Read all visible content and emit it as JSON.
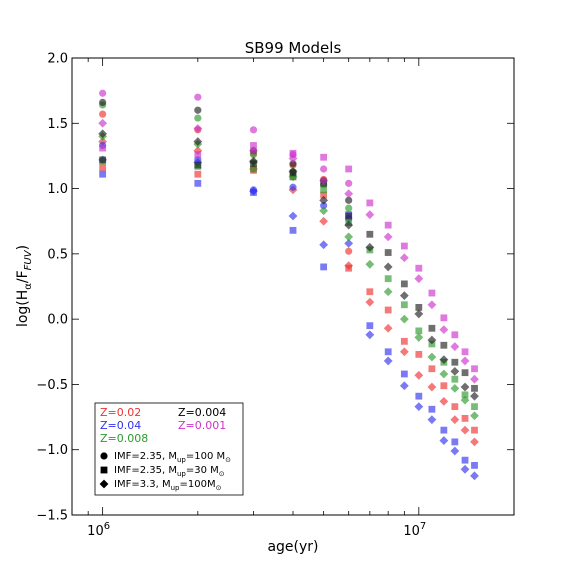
{
  "chart_data": {
    "type": "scatter",
    "title": "SB99 Models",
    "xlabel": "age(yr)",
    "ylabel": "log(Hα/F_FUV)",
    "x_scale": "log",
    "xlim": [
      800000,
      20000000
    ],
    "ylim": [
      -1.5,
      2.0
    ],
    "x_ticks": [
      {
        "value": 1000000,
        "base": "10",
        "exp": "6"
      },
      {
        "value": 10000000,
        "base": "10",
        "exp": "7"
      }
    ],
    "y_ticks": [
      {
        "value": 2.0,
        "label": "2.0"
      },
      {
        "value": 1.5,
        "label": "1.5"
      },
      {
        "value": 1.0,
        "label": "1.0"
      },
      {
        "value": 0.5,
        "label": "0.5"
      },
      {
        "value": 0.0,
        "label": "0.0"
      },
      {
        "value": -0.5,
        "label": "−0.5"
      },
      {
        "value": -1.0,
        "label": "−1.0"
      },
      {
        "value": -1.5,
        "label": "−1.5"
      }
    ],
    "grid": false,
    "legend_position": "bottom-left",
    "colors": {
      "Z=0.02": "#ee3333",
      "Z=0.04": "#3333ee",
      "Z=0.008": "#2e9a2e",
      "Z=0.004": "#222222",
      "Z=0.001": "#cc33cc"
    },
    "legend": {
      "metallicities": [
        {
          "label": "Z=0.02",
          "color": "#ee3333"
        },
        {
          "label": "Z=0.004",
          "color": "#000000"
        },
        {
          "label": "Z=0.04",
          "color": "#3333ee"
        },
        {
          "label": "Z=0.001",
          "color": "#cc33cc"
        },
        {
          "label": "Z=0.008",
          "color": "#2e9a2e"
        }
      ],
      "imf": [
        {
          "marker": "circle",
          "label": "IMF=2.35, M",
          "sub": "up",
          "rest": "=100 M",
          "sun": "⊙"
        },
        {
          "marker": "square",
          "label": "IMF=2.35, M",
          "sub": "up",
          "rest": "=30 M",
          "sun": "⊙"
        },
        {
          "marker": "diamond",
          "label": "IMF=3.3, M",
          "sub": "up",
          "rest": "=100M",
          "sun": "⊙"
        }
      ]
    },
    "series": [
      {
        "Z": "0.02",
        "marker": "circle",
        "x": [
          1000000,
          2000000,
          3000000,
          4000000,
          5000000,
          6000000
        ],
        "y": [
          1.57,
          1.45,
          1.27,
          1.18,
          1.07,
          0.52
        ]
      },
      {
        "Z": "0.02",
        "marker": "square",
        "x": [
          1000000,
          2000000,
          3000000,
          4000000,
          5000000,
          6000000,
          7000000,
          8000000,
          9000000,
          10000000,
          11000000,
          12000000,
          13000000,
          14000000,
          15000000
        ],
        "y": [
          1.16,
          1.11,
          1.14,
          1.09,
          0.95,
          0.39,
          0.21,
          0.07,
          -0.17,
          -0.27,
          -0.38,
          -0.51,
          -0.67,
          -0.76,
          -0.85
        ]
      },
      {
        "Z": "0.02",
        "marker": "diamond",
        "x": [
          1000000,
          2000000,
          3000000,
          4000000,
          5000000,
          6000000,
          7000000,
          8000000,
          9000000,
          10000000,
          11000000,
          12000000,
          13000000,
          14000000,
          15000000
        ],
        "y": [
          1.36,
          1.29,
          1.15,
          0.99,
          0.75,
          0.41,
          0.13,
          -0.07,
          -0.25,
          -0.43,
          -0.52,
          -0.63,
          -0.77,
          -0.85,
          -0.94
        ]
      },
      {
        "Z": "0.04",
        "marker": "circle",
        "x": [
          1000000,
          2000000,
          3000000,
          4000000,
          5000000,
          6000000
        ],
        "y": [
          1.33,
          1.22,
          0.99,
          1.01,
          0.87,
          0.77
        ]
      },
      {
        "Z": "0.04",
        "marker": "square",
        "x": [
          1000000,
          2000000,
          3000000,
          4000000,
          5000000,
          6000000,
          7000000,
          8000000,
          9000000,
          10000000,
          11000000,
          12000000,
          13000000,
          14000000,
          15000000
        ],
        "y": [
          1.11,
          1.04,
          0.97,
          0.68,
          0.4,
          0.8,
          -0.05,
          -0.25,
          -0.42,
          -0.59,
          -0.69,
          -0.85,
          -0.94,
          -1.08,
          -1.12
        ]
      },
      {
        "Z": "0.04",
        "marker": "diamond",
        "x": [
          1000000,
          2000000,
          3000000,
          4000000,
          5000000,
          6000000,
          7000000,
          8000000,
          9000000,
          10000000,
          11000000,
          12000000,
          13000000,
          14000000,
          15000000
        ],
        "y": [
          1.22,
          1.2,
          0.98,
          0.79,
          0.57,
          0.58,
          -0.12,
          -0.32,
          -0.51,
          -0.67,
          -0.77,
          -0.93,
          -1.01,
          -1.15,
          -1.2
        ]
      },
      {
        "Z": "0.008",
        "marker": "circle",
        "x": [
          1000000,
          2000000,
          3000000,
          4000000,
          5000000,
          6000000
        ],
        "y": [
          1.64,
          1.54,
          1.26,
          1.13,
          1.03,
          0.85
        ]
      },
      {
        "Z": "0.008",
        "marker": "square",
        "x": [
          1000000,
          2000000,
          3000000,
          4000000,
          5000000,
          6000000,
          7000000,
          8000000,
          9000000,
          10000000,
          11000000,
          12000000,
          13000000,
          14000000,
          15000000
        ],
        "y": [
          1.21,
          1.17,
          1.15,
          1.09,
          0.99,
          0.74,
          0.53,
          0.31,
          0.11,
          -0.09,
          -0.19,
          -0.33,
          -0.46,
          -0.58,
          -0.67
        ]
      },
      {
        "Z": "0.008",
        "marker": "diamond",
        "x": [
          1000000,
          2000000,
          3000000,
          4000000,
          5000000,
          6000000,
          7000000,
          8000000,
          9000000,
          10000000,
          11000000,
          12000000,
          13000000,
          14000000,
          15000000
        ],
        "y": [
          1.4,
          1.34,
          1.2,
          1.09,
          0.83,
          0.63,
          0.42,
          0.21,
          0.0,
          -0.14,
          -0.29,
          -0.42,
          -0.53,
          -0.62,
          -0.74
        ]
      },
      {
        "Z": "0.004",
        "marker": "circle",
        "x": [
          1000000,
          2000000,
          3000000,
          4000000,
          5000000,
          6000000
        ],
        "y": [
          1.66,
          1.6,
          1.29,
          1.19,
          1.06,
          0.91
        ]
      },
      {
        "Z": "0.004",
        "marker": "square",
        "x": [
          1000000,
          2000000,
          3000000,
          4000000,
          5000000,
          6000000,
          7000000,
          8000000,
          9000000,
          10000000,
          11000000,
          12000000,
          13000000,
          14000000,
          15000000
        ],
        "y": [
          1.22,
          1.18,
          1.19,
          1.12,
          1.04,
          0.79,
          0.65,
          0.51,
          0.27,
          0.09,
          -0.07,
          -0.2,
          -0.33,
          -0.41,
          -0.53
        ]
      },
      {
        "Z": "0.004",
        "marker": "diamond",
        "x": [
          1000000,
          2000000,
          3000000,
          4000000,
          5000000,
          6000000,
          7000000,
          8000000,
          9000000,
          10000000,
          11000000,
          12000000,
          13000000,
          14000000,
          15000000
        ],
        "y": [
          1.42,
          1.36,
          1.21,
          1.13,
          0.91,
          0.72,
          0.55,
          0.4,
          0.18,
          0.04,
          -0.16,
          -0.31,
          -0.4,
          -0.52,
          -0.59
        ]
      },
      {
        "Z": "0.001",
        "marker": "circle",
        "x": [
          1000000,
          2000000,
          3000000,
          4000000,
          5000000,
          6000000
        ],
        "y": [
          1.73,
          1.7,
          1.45,
          1.26,
          1.15,
          1.04
        ]
      },
      {
        "Z": "0.001",
        "marker": "square",
        "x": [
          1000000,
          2000000,
          3000000,
          4000000,
          5000000,
          6000000,
          7000000,
          8000000,
          9000000,
          10000000,
          11000000,
          12000000,
          13000000,
          14000000,
          15000000
        ],
        "y": [
          1.31,
          1.26,
          1.33,
          1.27,
          1.24,
          1.15,
          0.89,
          0.72,
          0.56,
          0.39,
          0.2,
          0.01,
          -0.12,
          -0.25,
          -0.38
        ]
      },
      {
        "Z": "0.001",
        "marker": "diamond",
        "x": [
          1000000,
          2000000,
          3000000,
          4000000,
          5000000,
          6000000,
          7000000,
          8000000,
          9000000,
          10000000,
          11000000,
          12000000,
          13000000,
          14000000,
          15000000
        ],
        "y": [
          1.5,
          1.46,
          1.29,
          1.23,
          1.06,
          0.96,
          0.8,
          0.63,
          0.47,
          0.31,
          0.11,
          -0.08,
          -0.21,
          -0.32,
          -0.46
        ]
      }
    ]
  }
}
